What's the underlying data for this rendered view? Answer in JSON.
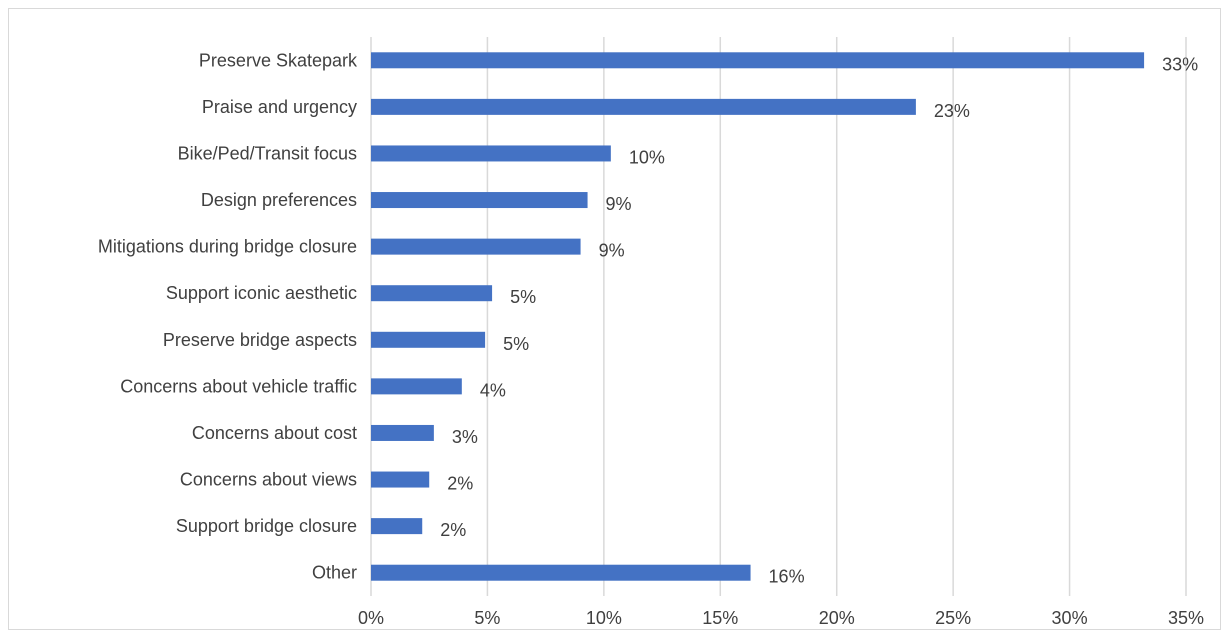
{
  "chart_data": {
    "type": "bar",
    "orientation": "horizontal",
    "categories": [
      "Preserve Skatepark",
      "Praise and urgency",
      "Bike/Ped/Transit focus",
      "Design preferences",
      "Mitigations during bridge closure",
      "Support iconic aesthetic",
      "Preserve bridge aspects",
      "Concerns about vehicle traffic",
      "Concerns about cost",
      "Concerns about views",
      "Support bridge closure",
      "Other"
    ],
    "values": [
      33.2,
      23.4,
      10.3,
      9.3,
      9.0,
      5.2,
      4.9,
      3.9,
      2.7,
      2.5,
      2.2,
      16.3
    ],
    "data_labels": [
      "33%",
      "23%",
      "10%",
      "9%",
      "9%",
      "5%",
      "5%",
      "4%",
      "3%",
      "2%",
      "2%",
      "16%"
    ],
    "xlim": [
      0,
      35
    ],
    "x_ticks": [
      "0%",
      "5%",
      "10%",
      "15%",
      "20%",
      "25%",
      "30%",
      "35%"
    ],
    "x_tick_values": [
      0,
      5,
      10,
      15,
      20,
      25,
      30,
      35
    ],
    "grid": true,
    "bar_color": "#4472c4",
    "gridline_color": "#d9d9d9",
    "title": "",
    "xlabel": "",
    "ylabel": ""
  }
}
